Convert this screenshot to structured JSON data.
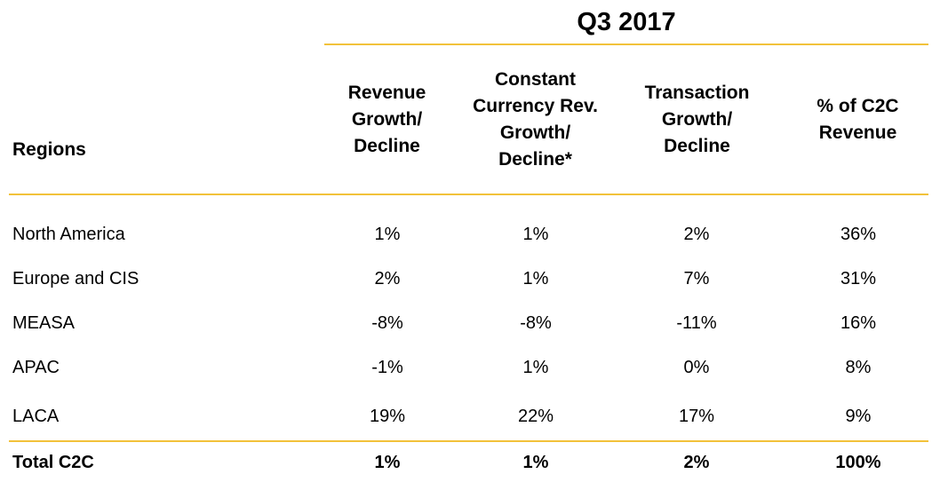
{
  "table": {
    "period": "Q3 2017",
    "region_header": "Regions",
    "columns": [
      "Revenue Growth/ Decline",
      "Constant Currency Rev. Growth/ Decline*",
      "Transaction Growth/ Decline",
      "% of C2C Revenue"
    ],
    "rows": [
      {
        "region": "North America",
        "values": [
          "1%",
          "1%",
          "2%",
          "36%"
        ]
      },
      {
        "region": "Europe and CIS",
        "values": [
          "2%",
          "1%",
          "7%",
          "31%"
        ]
      },
      {
        "region": "MEASA",
        "values": [
          "-8%",
          "-8%",
          "-11%",
          "16%"
        ]
      },
      {
        "region": "APAC",
        "values": [
          "-1%",
          "1%",
          "0%",
          "8%"
        ]
      },
      {
        "region": "LACA",
        "values": [
          "19%",
          "22%",
          "17%",
          "9%"
        ]
      }
    ],
    "total": {
      "region": "Total C2C",
      "values": [
        "1%",
        "1%",
        "2%",
        "100%"
      ]
    }
  },
  "colors": {
    "rule": "#f2c23a",
    "text": "#000000",
    "background": "#ffffff"
  }
}
